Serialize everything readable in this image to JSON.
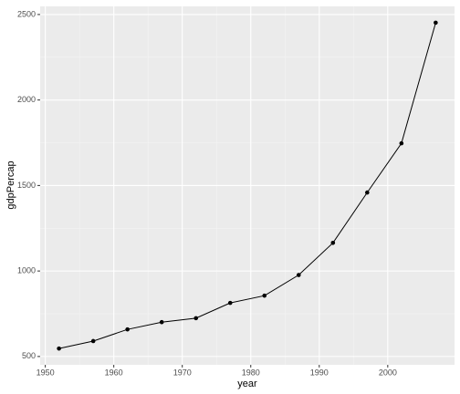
{
  "chart_data": {
    "type": "line",
    "x_label": "year",
    "y_label": "gdpPercap",
    "x": [
      1952,
      1957,
      1962,
      1967,
      1972,
      1977,
      1982,
      1987,
      1992,
      1997,
      2002,
      2007
    ],
    "series": [
      {
        "name": "gdpPercap",
        "color": "#000000",
        "values": [
          546.57,
          590.06,
          658.35,
          700.77,
          724.03,
          813.34,
          855.72,
          976.51,
          1164.41,
          1458.82,
          1746.77,
          2452.21
        ]
      }
    ],
    "xlim": [
      1949.25,
      2009.75
    ],
    "xticks": [
      1950,
      1960,
      1970,
      1980,
      1990,
      2000
    ],
    "ylim": [
      451.3,
      2547.5
    ],
    "yticks": [
      500,
      1000,
      1500,
      2000,
      2500
    ],
    "grid": true,
    "minor_grid": true,
    "markers": true
  }
}
